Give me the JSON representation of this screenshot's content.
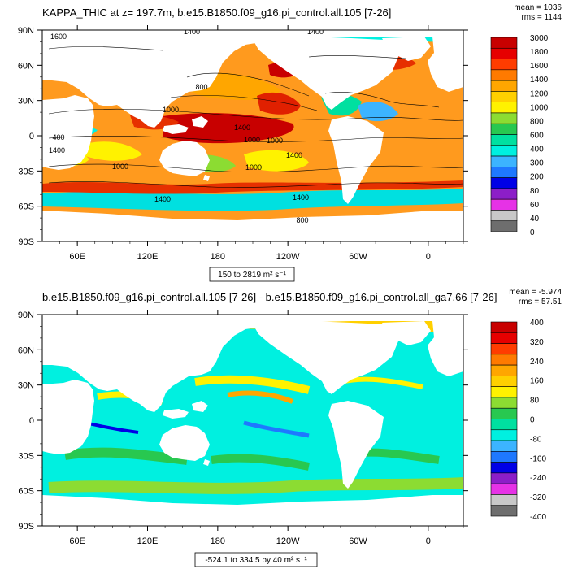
{
  "chart_data": [
    {
      "type": "heatmap",
      "title": "KAPPA_THIC at z= 197.7m, b.e15.B1850.f09_g16.pi_control.all.105 [7-26]",
      "stats": [
        "mean = 1036",
        "rms = 1144"
      ],
      "range_label": "150 to 2819 m² s⁻¹",
      "x_ticks": [
        "60E",
        "120E",
        "180",
        "120W",
        "60W",
        "0"
      ],
      "y_ticks": [
        "90N",
        "60N",
        "30N",
        "0",
        "30S",
        "60S",
        "90S"
      ],
      "colorbar": {
        "labels": [
          "3000",
          "1800",
          "1600",
          "1400",
          "1200",
          "1000",
          "800",
          "600",
          "400",
          "300",
          "200",
          "80",
          "60",
          "40",
          "0"
        ],
        "colors": [
          "#c80000",
          "#e60000",
          "#ff3c00",
          "#ff7a00",
          "#ffa600",
          "#ffd000",
          "#fff200",
          "#8cdc32",
          "#28c850",
          "#00e0a0",
          "#00f0e0",
          "#3cb4ff",
          "#1e78ff",
          "#0000e6",
          "#8c1ec8",
          "#e632e6",
          "#c8c8c8",
          "#6e6e6e"
        ]
      },
      "contour_labels": [
        "1400",
        "1400",
        "1600",
        "800",
        "1000",
        "1400",
        "1000",
        "1000",
        "400",
        "1400",
        "1400",
        "1000",
        "1000",
        "1400",
        "1400",
        "800"
      ]
    },
    {
      "type": "heatmap",
      "title": "b.e15.B1850.f09_g16.pi_control.all.105 [7-26] - b.e15.B1850.f09_g16.pi_control.all_ga7.66 [7-26]",
      "stats": [
        "mean = -5.974",
        "rms = 57.51"
      ],
      "range_label": "-524.1 to 334.5 by 40 m² s⁻¹",
      "x_ticks": [
        "60E",
        "120E",
        "180",
        "120W",
        "60W",
        "0"
      ],
      "y_ticks": [
        "90N",
        "60N",
        "30N",
        "0",
        "30S",
        "60S",
        "90S"
      ],
      "colorbar": {
        "labels": [
          "400",
          "320",
          "240",
          "160",
          "80",
          "0",
          "-80",
          "-160",
          "-240",
          "-320",
          "-400"
        ],
        "colors": [
          "#c80000",
          "#e60000",
          "#ff3c00",
          "#ff7a00",
          "#ffa600",
          "#ffd000",
          "#fff200",
          "#8cdc32",
          "#28c850",
          "#00e0a0",
          "#00f0e0",
          "#3cb4ff",
          "#1e78ff",
          "#0000e6",
          "#8c1ec8",
          "#e632e6",
          "#c8c8c8",
          "#6e6e6e"
        ]
      }
    }
  ]
}
